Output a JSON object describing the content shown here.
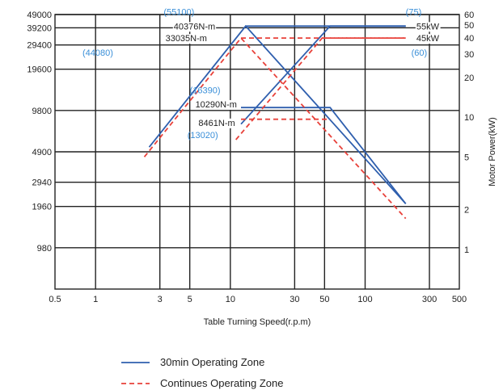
{
  "chart_data": {
    "type": "line",
    "xlabel": "Table Turning Speed(r.p.m)",
    "ylabel": "",
    "y2label": "Motor Power(kW)",
    "x_scale": "log",
    "y_scale": "log",
    "xlim": [
      0.5,
      500
    ],
    "ylim": [
      490,
      49000
    ],
    "y2lim": [
      0.5,
      60
    ],
    "x_ticks": [
      "0.5",
      "1",
      "3",
      "5",
      "10",
      "30",
      "50",
      "100",
      "300",
      "500"
    ],
    "x_tick_values": [
      0.5,
      1,
      3,
      5,
      10,
      30,
      50,
      100,
      300,
      500
    ],
    "y_ticks": [
      "49000",
      "39200",
      "29400",
      "19600",
      "9800",
      "4900",
      "2940",
      "1960",
      "980"
    ],
    "y_tick_values": [
      49000,
      39200,
      29400,
      19600,
      9800,
      4900,
      2940,
      1960,
      980
    ],
    "y2_ticks": [
      "60",
      "50",
      "40",
      "30",
      "20",
      "10",
      "5",
      "2",
      "1"
    ],
    "y2_tick_values": [
      60,
      50,
      40,
      30,
      20,
      10,
      5,
      2,
      1
    ],
    "grid": true,
    "legend_position": "bottom",
    "legend": [
      {
        "label": "30min Operating Zone",
        "style": "solid",
        "color": "#2f5fae"
      },
      {
        "label": "Continues Operating Zone",
        "style": "dashed",
        "color": "#e8413a"
      }
    ],
    "series": [
      {
        "zone": "30min",
        "color": "#2f5fae",
        "style": "solid",
        "label": "55kW",
        "x": [
          2.5,
          13,
          200
        ],
        "y": [
          5300,
          40376,
          2050
        ]
      },
      {
        "zone": "30min",
        "color": "#2f5fae",
        "style": "solid",
        "label": "",
        "x": [
          13,
          200
        ],
        "y": [
          40376,
          40376
        ]
      },
      {
        "zone": "30min",
        "color": "#2f5fae",
        "style": "solid",
        "label": "",
        "x": [
          12,
          55,
          200
        ],
        "y": [
          7800,
          40376,
          40376
        ]
      },
      {
        "zone": "30min",
        "color": "#2f5fae",
        "style": "solid",
        "label": "",
        "x": [
          12,
          55,
          200
        ],
        "y": [
          10290,
          10290,
          2050
        ]
      },
      {
        "zone": "continuous",
        "color": "#e8413a",
        "style": "dashed",
        "label": "45kW",
        "x": [
          2.3,
          12,
          200
        ],
        "y": [
          4500,
          33035,
          1600
        ]
      },
      {
        "zone": "continuous",
        "color": "#e8413a",
        "style": "dashed",
        "label": "",
        "x": [
          12,
          200
        ],
        "y": [
          33035,
          33035
        ]
      },
      {
        "zone": "continuous",
        "color": "#e8413a",
        "style": "dashed",
        "label": "",
        "x": [
          11,
          48,
          200
        ],
        "y": [
          6000,
          33035,
          33035
        ]
      },
      {
        "zone": "continuous",
        "color": "#e8413a",
        "style": "dashed",
        "label": "",
        "x": [
          12,
          55
        ],
        "y": [
          8461,
          8461
        ]
      }
    ],
    "annotations": [
      {
        "text": "40376N-m",
        "x": 3.8,
        "y": 40376,
        "color": "dark",
        "anchor": "start"
      },
      {
        "text": "33035N-m",
        "x": 3.3,
        "y": 33035,
        "color": "dark",
        "anchor": "start"
      },
      {
        "text": "(55100)",
        "x": 3.2,
        "y": 51500,
        "color": "blue",
        "anchor": "start"
      },
      {
        "text": "(44080)",
        "x": 0.8,
        "y": 26000,
        "color": "blue",
        "anchor": "start"
      },
      {
        "text": "(75)",
        "x": 200,
        "y": 51500,
        "color": "blue",
        "anchor": "start"
      },
      {
        "text": "55kW",
        "x": 240,
        "y": 40376,
        "color": "dark",
        "anchor": "start"
      },
      {
        "text": "45kW",
        "x": 240,
        "y": 33035,
        "color": "dark",
        "anchor": "start"
      },
      {
        "text": "(60)",
        "x": 220,
        "y": 26000,
        "color": "blue",
        "anchor": "start"
      },
      {
        "text": "(16390)",
        "x": 5.0,
        "y": 13800,
        "color": "blue",
        "anchor": "start"
      },
      {
        "text": "10290N-m",
        "x": 5.5,
        "y": 10900,
        "color": "dark",
        "anchor": "start"
      },
      {
        "text": "8461N-m",
        "x": 5.8,
        "y": 8000,
        "color": "dark",
        "anchor": "start"
      },
      {
        "text": "(13020)",
        "x": 4.8,
        "y": 6500,
        "color": "blue",
        "anchor": "start"
      }
    ]
  }
}
